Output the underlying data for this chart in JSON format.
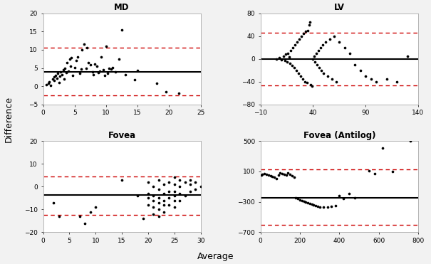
{
  "md": {
    "title": "MD",
    "xlim": [
      0,
      25
    ],
    "ylim": [
      -5,
      20
    ],
    "xticks": [
      0,
      5,
      10,
      15,
      20,
      25
    ],
    "yticks": [
      -5,
      0,
      5,
      10,
      15,
      20
    ],
    "mean_line": 4.0,
    "upper_loa": 10.5,
    "lower_loa": -2.5,
    "points_x": [
      0.5,
      0.8,
      1.0,
      1.2,
      1.5,
      1.7,
      1.8,
      2.0,
      2.2,
      2.3,
      2.5,
      2.7,
      2.8,
      3.0,
      3.2,
      3.3,
      3.5,
      3.7,
      3.8,
      4.0,
      4.2,
      4.3,
      4.5,
      4.7,
      5.0,
      5.2,
      5.5,
      5.8,
      6.0,
      6.2,
      6.5,
      6.8,
      7.0,
      7.2,
      7.5,
      7.8,
      8.0,
      8.2,
      8.5,
      8.8,
      9.0,
      9.2,
      9.5,
      9.8,
      10.0,
      10.2,
      10.5,
      10.8,
      11.0,
      11.5,
      12.0,
      12.5,
      13.0,
      14.5,
      15.0,
      18.0,
      19.5,
      21.5
    ],
    "points_y": [
      0.5,
      0.8,
      1.2,
      0.2,
      2.0,
      1.5,
      2.5,
      3.0,
      2.2,
      3.5,
      1.0,
      2.8,
      4.0,
      3.2,
      4.5,
      2.0,
      5.0,
      3.8,
      6.5,
      4.2,
      7.5,
      5.5,
      7.8,
      3.0,
      5.2,
      7.0,
      8.0,
      3.5,
      4.8,
      10.0,
      11.5,
      5.0,
      10.5,
      6.5,
      5.8,
      4.0,
      3.2,
      6.0,
      5.5,
      3.8,
      4.2,
      8.0,
      4.5,
      3.0,
      11.0,
      3.5,
      5.0,
      4.8,
      5.2,
      4.0,
      7.5,
      15.5,
      3.2,
      1.8,
      4.3,
      0.8,
      -1.5,
      -2.0
    ]
  },
  "lv": {
    "title": "LV",
    "xlim": [
      -10,
      140
    ],
    "ylim": [
      -80,
      80
    ],
    "xticks": [
      -10,
      40,
      90,
      140
    ],
    "yticks": [
      -80,
      -40,
      0,
      40,
      80
    ],
    "mean_line": 0.0,
    "upper_loa": 46.0,
    "lower_loa": -46.0,
    "points_x": [
      5,
      8,
      10,
      12,
      13,
      14,
      15,
      16,
      17,
      18,
      19,
      20,
      21,
      22,
      23,
      24,
      25,
      26,
      27,
      28,
      29,
      30,
      31,
      32,
      33,
      34,
      35,
      36,
      37,
      38,
      39,
      40,
      41,
      42,
      43,
      44,
      45,
      46,
      47,
      48,
      49,
      50,
      52,
      54,
      56,
      58,
      60,
      62,
      65,
      70,
      75,
      80,
      85,
      90,
      95,
      100,
      110,
      120,
      130
    ],
    "points_y": [
      0,
      2,
      -1,
      5,
      -3,
      8,
      -5,
      10,
      3,
      -8,
      15,
      -12,
      20,
      -15,
      25,
      -20,
      30,
      -25,
      35,
      -30,
      40,
      -35,
      45,
      -40,
      48,
      -42,
      50,
      60,
      65,
      -45,
      -48,
      0,
      5,
      -5,
      10,
      -10,
      15,
      -15,
      20,
      -20,
      25,
      -25,
      30,
      -30,
      35,
      -35,
      40,
      -40,
      30,
      20,
      10,
      -10,
      -20,
      -30,
      -35,
      -40,
      -35,
      -40,
      5
    ]
  },
  "fovea": {
    "title": "Fovea",
    "xlim": [
      0,
      30
    ],
    "ylim": [
      -20,
      20
    ],
    "xticks": [
      0,
      5,
      10,
      15,
      20,
      25,
      30
    ],
    "yticks": [
      -20,
      -10,
      0,
      10,
      20
    ],
    "mean_line": -3.5,
    "upper_loa": 4.5,
    "lower_loa": -12.5,
    "points_x": [
      2,
      3,
      7,
      8,
      9,
      10,
      15,
      18,
      19,
      20,
      20,
      20,
      20,
      21,
      21,
      21,
      21,
      21,
      22,
      22,
      22,
      22,
      22,
      22,
      23,
      23,
      23,
      23,
      23,
      24,
      24,
      24,
      24,
      25,
      25,
      25,
      25,
      25,
      25,
      26,
      26,
      26,
      26,
      27,
      27,
      28,
      28,
      28,
      29,
      29,
      30
    ],
    "points_y": [
      -7,
      -13,
      -13,
      -16,
      -11,
      -9,
      3,
      -4,
      -14,
      2,
      -3,
      -5,
      -8,
      -6,
      -9,
      -12,
      0,
      -4,
      3,
      -1,
      -5,
      -7,
      -10,
      -13,
      1,
      -3,
      -6,
      -8,
      -11,
      2,
      -2,
      -5,
      -8,
      4,
      1,
      -2,
      -4,
      -6,
      -9,
      3,
      0,
      -3,
      -6,
      2,
      -4,
      3,
      1,
      -2,
      2,
      -1,
      0
    ]
  },
  "fovea_antilog": {
    "title": "Fovea (Antilog)",
    "xlim": [
      0,
      800
    ],
    "ylim": [
      -700,
      500
    ],
    "xticks": [
      0,
      200,
      400,
      600,
      800
    ],
    "yticks": [
      -700,
      -300,
      100,
      500
    ],
    "mean_line": -250.0,
    "upper_loa": 130.0,
    "lower_loa": -600.0,
    "points_x": [
      5,
      10,
      20,
      30,
      40,
      50,
      60,
      70,
      80,
      90,
      100,
      110,
      120,
      130,
      140,
      150,
      160,
      170,
      180,
      190,
      200,
      210,
      220,
      230,
      240,
      250,
      260,
      270,
      280,
      290,
      300,
      320,
      340,
      360,
      380,
      400,
      420,
      450,
      480,
      550,
      580,
      620,
      670,
      760
    ],
    "points_y": [
      50,
      60,
      70,
      65,
      55,
      40,
      30,
      20,
      10,
      50,
      80,
      70,
      60,
      50,
      80,
      60,
      40,
      20,
      -250,
      -260,
      -270,
      -280,
      -290,
      -300,
      -310,
      -320,
      -330,
      -340,
      -350,
      -360,
      -370,
      -370,
      -370,
      -360,
      -350,
      -220,
      -260,
      -190,
      -250,
      110,
      75,
      410,
      100,
      500
    ]
  },
  "fig_background": "#f2f2f2",
  "plot_background": "#ffffff",
  "mean_line_color": "#000000",
  "loa_line_color": "#cc0000",
  "point_color": "#000000",
  "xlabel": "Average",
  "ylabel": "Difference",
  "border_color": "#888888"
}
